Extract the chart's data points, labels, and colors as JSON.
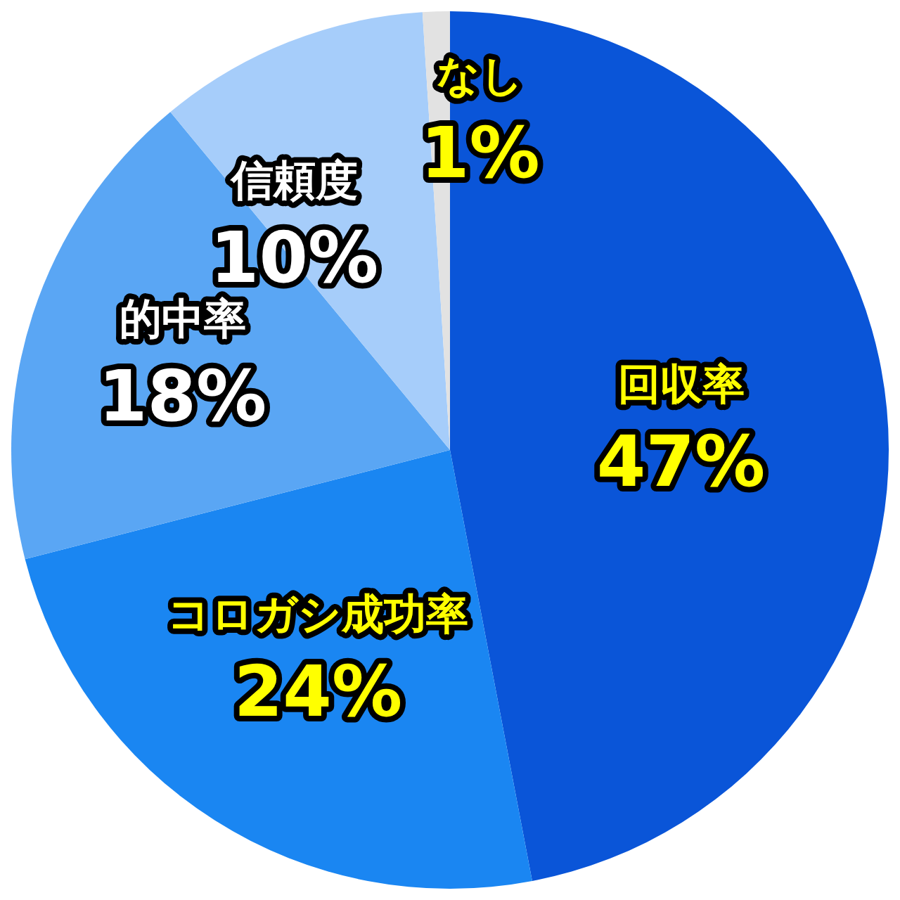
{
  "chart_data": {
    "type": "pie",
    "categories": [
      "回収率",
      "コロガシ成功率",
      "的中率",
      "信頼度",
      "なし"
    ],
    "values": [
      47,
      24,
      18,
      10,
      1
    ],
    "colors": [
      "#0a55d8",
      "#1a86f2",
      "#5aa6f4",
      "#a6cdfa",
      "#e2e2e2"
    ],
    "value_labels": [
      "47%",
      "24%",
      "18%",
      "10%",
      "1%"
    ],
    "legend": false
  }
}
